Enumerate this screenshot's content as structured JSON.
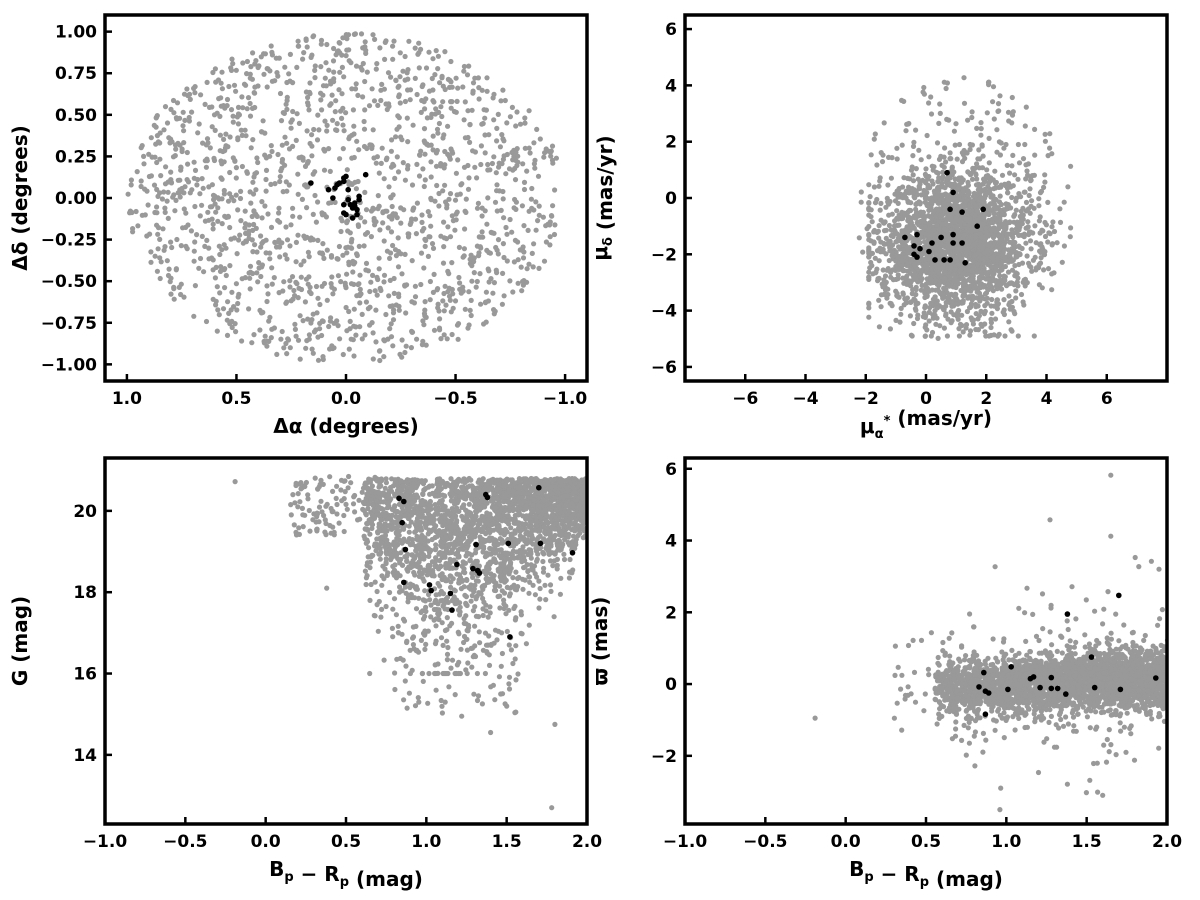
{
  "colors": {
    "background": "#999999",
    "member": "#000000",
    "axes": "#000000"
  },
  "chart_data": [
    {
      "type": "scatter",
      "xlabel": "Δα (degrees)",
      "ylabel": "Δδ (degrees)",
      "xlim": [
        1.1,
        -1.1
      ],
      "ylim": [
        -1.1,
        1.1
      ],
      "x_ticks": [
        "1.0",
        "0.5",
        "0.0",
        "−0.5",
        "−1.0"
      ],
      "y_ticks": [
        "−1.00",
        "−0.75",
        "−0.50",
        "−0.25",
        "0.00",
        "0.25",
        "0.50",
        "0.75",
        "1.00"
      ],
      "grid": false,
      "background_population": {
        "shape": "uniform disk",
        "center": [
          0.0,
          0.0
        ],
        "radius_x": 1.0,
        "radius_y": 1.0,
        "approx_count": 1600
      },
      "series": [
        {
          "values": [
            [
              0.16,
              0.09
            ],
            [
              0.08,
              0.05
            ],
            [
              0.05,
              0.06
            ],
            [
              0.06,
              0.0
            ],
            [
              0.03,
              0.09
            ],
            [
              0.04,
              0.08
            ],
            [
              0.01,
              0.12
            ],
            [
              0.01,
              0.1
            ],
            [
              0.0,
              0.13
            ],
            [
              -0.01,
              0.05
            ],
            [
              -0.01,
              -0.01
            ],
            [
              -0.02,
              -0.04
            ],
            [
              -0.03,
              -0.06
            ],
            [
              -0.04,
              -0.03
            ],
            [
              -0.05,
              -0.07
            ],
            [
              -0.06,
              -0.01
            ],
            [
              -0.06,
              0.01
            ],
            [
              0.0,
              -0.1
            ],
            [
              0.01,
              -0.09
            ],
            [
              -0.03,
              -0.12
            ],
            [
              -0.05,
              -0.1
            ],
            [
              -0.04,
              -0.05
            ],
            [
              -0.09,
              0.14
            ],
            [
              0.01,
              -0.04
            ]
          ]
        }
      ]
    },
    {
      "type": "scatter",
      "xlabel": "μα* (mas/yr)",
      "ylabel": "μδ (mas/yr)",
      "xlim": [
        -8.0,
        8.0
      ],
      "ylim": [
        -6.5,
        6.5
      ],
      "x_ticks": [
        "−6",
        "−4",
        "−2",
        "0",
        "2",
        "4",
        "6"
      ],
      "y_ticks": [
        "−6",
        "−4",
        "−2",
        "0",
        "2",
        "4",
        "6"
      ],
      "grid": false,
      "background_population": {
        "shape": "dense cloud with sparse halo",
        "center": [
          1.0,
          -1.5
        ],
        "approx_count": 2600
      },
      "series": [
        {
          "values": [
            [
              0.7,
              0.9
            ],
            [
              0.9,
              0.2
            ],
            [
              1.9,
              -0.4
            ],
            [
              0.8,
              -0.4
            ],
            [
              1.2,
              -0.5
            ],
            [
              1.7,
              -1.0
            ],
            [
              -0.7,
              -1.4
            ],
            [
              -0.3,
              -1.3
            ],
            [
              0.2,
              -1.6
            ],
            [
              0.9,
              -1.3
            ],
            [
              0.5,
              -1.4
            ],
            [
              0.9,
              -1.6
            ],
            [
              1.2,
              -1.6
            ],
            [
              -0.2,
              -1.8
            ],
            [
              -0.4,
              -1.7
            ],
            [
              0.1,
              -1.9
            ],
            [
              -0.4,
              -2.0
            ],
            [
              -0.3,
              -2.1
            ],
            [
              0.3,
              -2.2
            ],
            [
              0.6,
              -2.2
            ],
            [
              0.8,
              -2.2
            ],
            [
              1.3,
              -2.3
            ]
          ]
        }
      ]
    },
    {
      "type": "scatter",
      "xlabel": "Bp − Rp (mag)",
      "ylabel": "G (mag)",
      "xlim": [
        -1.0,
        2.0
      ],
      "ylim": [
        12.3,
        21.3
      ],
      "x_ticks": [
        "−1.0",
        "−0.5",
        "0.0",
        "0.5",
        "1.0",
        "1.5",
        "2.0"
      ],
      "y_ticks": [
        "14",
        "16",
        "18",
        "20"
      ],
      "grid": false,
      "background_population": {
        "shape": "band G 17-20.8, colour 0.6-2.0 with tail to 0.0",
        "approx_count": 3000
      },
      "series": [
        {
          "values": [
            [
              0.83,
              20.31
            ],
            [
              0.86,
              20.23
            ],
            [
              1.37,
              20.4
            ],
            [
              1.38,
              20.33
            ],
            [
              1.7,
              20.57
            ],
            [
              0.85,
              19.71
            ],
            [
              0.87,
              19.05
            ],
            [
              1.31,
              19.17
            ],
            [
              1.51,
              19.2
            ],
            [
              1.71,
              19.2
            ],
            [
              1.91,
              18.97
            ],
            [
              1.19,
              18.68
            ],
            [
              1.29,
              18.58
            ],
            [
              1.32,
              18.53
            ],
            [
              1.33,
              18.47
            ],
            [
              0.86,
              18.24
            ],
            [
              1.02,
              18.18
            ],
            [
              1.03,
              18.04
            ],
            [
              1.15,
              17.97
            ],
            [
              1.16,
              17.56
            ],
            [
              1.52,
              16.9
            ]
          ]
        }
      ]
    },
    {
      "type": "scatter",
      "xlabel": "Bp − Rp (mag)",
      "ylabel": "ϖ (mas)",
      "xlim": [
        -1.0,
        2.0
      ],
      "ylim": [
        -3.9,
        6.3
      ],
      "x_ticks": [
        "−1.0",
        "−0.5",
        "0.0",
        "0.5",
        "1.0",
        "1.5",
        "2.0"
      ],
      "y_ticks": [
        "−2",
        "0",
        "2",
        "4",
        "6"
      ],
      "grid": false,
      "background_population": {
        "shape": "band near 0 for colour 0.6-2.0",
        "approx_count": 3000
      },
      "series": [
        {
          "values": [
            [
              1.7,
              2.47
            ],
            [
              1.38,
              1.95
            ],
            [
              1.03,
              0.48
            ],
            [
              1.53,
              0.75
            ],
            [
              0.86,
              0.32
            ],
            [
              1.17,
              0.2
            ],
            [
              1.15,
              0.15
            ],
            [
              1.28,
              0.18
            ],
            [
              1.32,
              -0.12
            ],
            [
              1.28,
              -0.12
            ],
            [
              1.21,
              -0.1
            ],
            [
              1.01,
              -0.15
            ],
            [
              0.83,
              -0.08
            ],
            [
              0.87,
              -0.2
            ],
            [
              0.89,
              -0.25
            ],
            [
              1.55,
              -0.1
            ],
            [
              1.71,
              -0.15
            ],
            [
              1.37,
              -0.28
            ],
            [
              0.87,
              -0.84
            ],
            [
              1.93,
              0.17
            ]
          ]
        }
      ]
    }
  ]
}
